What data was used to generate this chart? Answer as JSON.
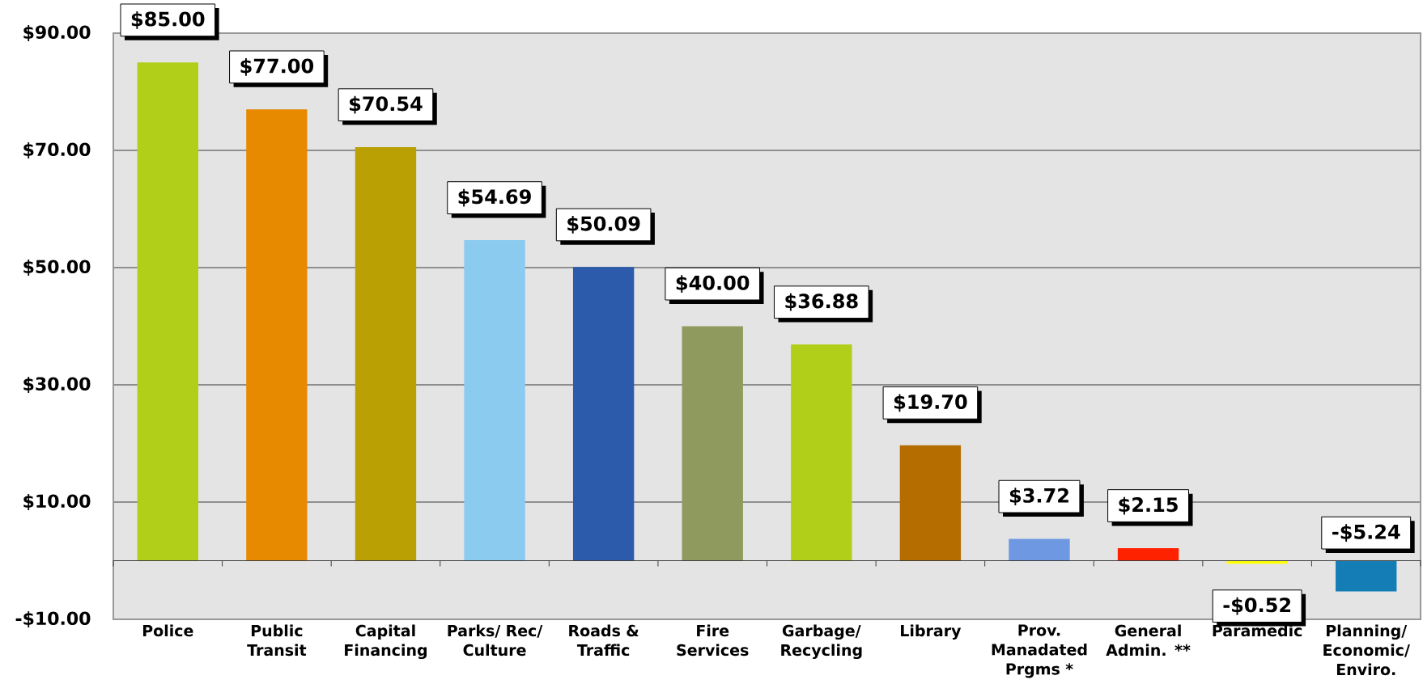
{
  "chart_data": {
    "type": "bar",
    "categories": [
      "Police",
      "Public Transit",
      "Capital Financing",
      "Parks/ Rec/ Culture",
      "Roads & Traffic",
      "Fire Services",
      "Garbage/ Recycling",
      "Library",
      "Prov. Manadated Prgms *",
      "General Admin. **",
      "Paramedic",
      "Planning/ Economic/ Enviro."
    ],
    "values": [
      85,
      77,
      70.54,
      54.69,
      50.09,
      40,
      36.88,
      19.7,
      3.72,
      2.15,
      -0.52,
      -5.24
    ],
    "colors": [
      "#b1cf19",
      "#e88a00",
      "#bba003",
      "#8ccbf0",
      "#2b5baa",
      "#8f9b5e",
      "#b1cf19",
      "#b56d00",
      "#6f98e3",
      "#ff2200",
      "#ffff00",
      "#157db5"
    ],
    "value_labels": [
      "$85.00",
      "$77.00",
      "$70.54",
      "$54.69",
      "$50.09",
      "$40.00",
      "$36.88",
      "$19.70",
      "$3.72",
      "$2.15",
      "-$0.52",
      "-$5.24"
    ],
    "ylim": [
      -10,
      90
    ],
    "yticks": [
      {
        "value": -10,
        "label": "-$10.00"
      },
      {
        "value": 10,
        "label": "$10.00"
      },
      {
        "value": 30,
        "label": "$30.00"
      },
      {
        "value": 50,
        "label": "$50.00"
      },
      {
        "value": 70,
        "label": "$70.00"
      },
      {
        "value": 90,
        "label": "$90.00"
      }
    ],
    "grid": "y"
  }
}
